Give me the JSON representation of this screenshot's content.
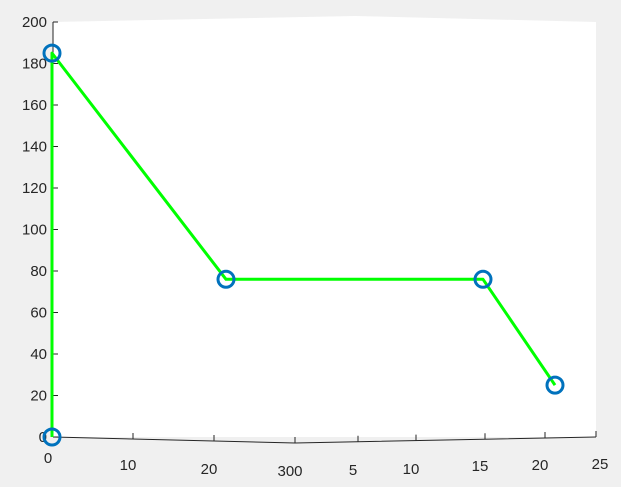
{
  "chart_data": {
    "type": "line",
    "title": "",
    "xlabel": "",
    "ylabel": "",
    "ylim": [
      0,
      200
    ],
    "y_ticks": [
      "0",
      "20",
      "40",
      "60",
      "80",
      "100",
      "120",
      "140",
      "160",
      "180",
      "200"
    ],
    "x_ticks": [
      "0",
      "10",
      "20",
      "300",
      "5",
      "10",
      "15",
      "20",
      "25"
    ],
    "series": [
      {
        "points": [
          {
            "x": 0,
            "y": 0
          },
          {
            "x": 0,
            "y": 185
          },
          {
            "x": 22,
            "y": 76
          },
          {
            "x": 15.5,
            "y": 76
          },
          {
            "x": 21,
            "y": 25
          }
        ],
        "line_color": "#00ff00",
        "marker_color": "#0072bd",
        "marker": "circle"
      }
    ],
    "grid": false,
    "legend": "none"
  },
  "colors": {
    "background": "#f0f0f0",
    "plot_area": "#ffffff",
    "axis": "#262626",
    "line": "#00ff00",
    "marker": "#0072bd"
  }
}
